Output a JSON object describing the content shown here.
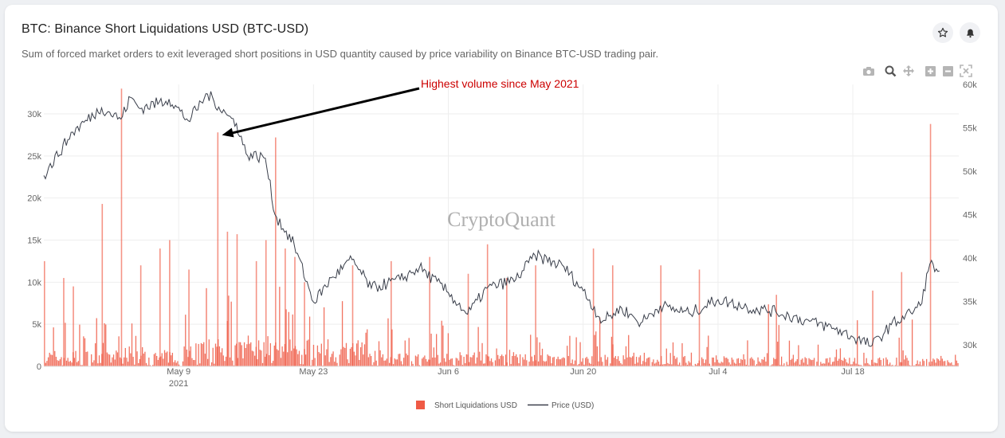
{
  "header": {
    "title": "BTC: Binance Short Liquidations USD (BTC-USD)",
    "subtitle": "Sum of forced market orders to exit leveraged short positions in USD quantity caused by price variability on Binance BTC-USD trading pair."
  },
  "actions": {
    "star_icon": "star-icon",
    "bell_icon": "bell-icon"
  },
  "modebar": [
    "camera-icon",
    "zoom-icon",
    "pan-icon",
    "zoom-in-icon",
    "zoom-out-icon",
    "autoscale-icon"
  ],
  "watermark": "CryptoQuant",
  "chart_data": {
    "type": "bar",
    "x_range": [
      "2021-04-25",
      "2021-07-29"
    ],
    "x_ticks": [
      {
        "date": "2021-05-09",
        "label": "May 9",
        "sublabel": "2021"
      },
      {
        "date": "2021-05-23",
        "label": "May 23"
      },
      {
        "date": "2021-06-06",
        "label": "Jun 6"
      },
      {
        "date": "2021-06-20",
        "label": "Jun 20"
      },
      {
        "date": "2021-07-04",
        "label": "Jul 4"
      },
      {
        "date": "2021-07-18",
        "label": "Jul 18"
      }
    ],
    "y_left": {
      "range": [
        0,
        33500
      ],
      "ticks": [
        0,
        5000,
        10000,
        15000,
        20000,
        25000,
        30000
      ],
      "tick_labels": [
        "0",
        "5k",
        "10k",
        "15k",
        "20k",
        "25k",
        "30k"
      ]
    },
    "y_right": {
      "range": [
        27500,
        60000
      ],
      "ticks": [
        30000,
        35000,
        40000,
        45000,
        50000,
        55000,
        60000
      ],
      "tick_labels": [
        "30k",
        "35k",
        "40k",
        "45k",
        "50k",
        "55k",
        "60k"
      ]
    },
    "grid": true,
    "legend_position": "bottom-center",
    "series": [
      {
        "name": "Short Liquidations USD",
        "kind": "bar",
        "axis": "left",
        "color": "#ef5a45",
        "spikes": [
          {
            "date": "2021-04-25",
            "value": 12500
          },
          {
            "date": "2021-04-27",
            "value": 10500
          },
          {
            "date": "2021-04-28",
            "value": 9500
          },
          {
            "date": "2021-05-01",
            "value": 19300
          },
          {
            "date": "2021-05-03",
            "value": 33000
          },
          {
            "date": "2021-05-05",
            "value": 12000
          },
          {
            "date": "2021-05-07",
            "value": 14000
          },
          {
            "date": "2021-05-08",
            "value": 15000
          },
          {
            "date": "2021-05-10",
            "value": 11500
          },
          {
            "date": "2021-05-13",
            "value": 27800
          },
          {
            "date": "2021-05-14",
            "value": 16000
          },
          {
            "date": "2021-05-15",
            "value": 15700
          },
          {
            "date": "2021-05-17",
            "value": 12500
          },
          {
            "date": "2021-05-18",
            "value": 15000
          },
          {
            "date": "2021-05-19",
            "value": 27200
          },
          {
            "date": "2021-05-20",
            "value": 14000
          },
          {
            "date": "2021-05-21",
            "value": 13000
          },
          {
            "date": "2021-05-22",
            "value": 10000
          },
          {
            "date": "2021-05-27",
            "value": 12000
          },
          {
            "date": "2021-05-31",
            "value": 12500
          },
          {
            "date": "2021-06-04",
            "value": 13000
          },
          {
            "date": "2021-06-08",
            "value": 11000
          },
          {
            "date": "2021-06-10",
            "value": 14500
          },
          {
            "date": "2021-06-12",
            "value": 10500
          },
          {
            "date": "2021-06-15",
            "value": 12000
          },
          {
            "date": "2021-06-21",
            "value": 14000
          },
          {
            "date": "2021-06-23",
            "value": 12000
          },
          {
            "date": "2021-06-28",
            "value": 12000
          },
          {
            "date": "2021-07-02",
            "value": 11500
          },
          {
            "date": "2021-07-10",
            "value": 8500
          },
          {
            "date": "2021-07-20",
            "value": 9000
          },
          {
            "date": "2021-07-23",
            "value": 11200
          },
          {
            "date": "2021-07-26",
            "value": 28800
          }
        ]
      },
      {
        "name": "Price (USD)",
        "kind": "line",
        "axis": "right",
        "color": "#3a3f4b",
        "points": [
          {
            "date": "2021-04-25",
            "value": 49500
          },
          {
            "date": "2021-04-28",
            "value": 54500
          },
          {
            "date": "2021-05-01",
            "value": 57300
          },
          {
            "date": "2021-05-03",
            "value": 56000
          },
          {
            "date": "2021-05-04",
            "value": 58500
          },
          {
            "date": "2021-05-05",
            "value": 57200
          },
          {
            "date": "2021-05-08",
            "value": 58300
          },
          {
            "date": "2021-05-10",
            "value": 55800
          },
          {
            "date": "2021-05-12",
            "value": 58900
          },
          {
            "date": "2021-05-14",
            "value": 56500
          },
          {
            "date": "2021-05-15",
            "value": 55500
          },
          {
            "date": "2021-05-16",
            "value": 52000
          },
          {
            "date": "2021-05-18",
            "value": 51500
          },
          {
            "date": "2021-05-19",
            "value": 45000
          },
          {
            "date": "2021-05-21",
            "value": 41500
          },
          {
            "date": "2021-05-23",
            "value": 34900
          },
          {
            "date": "2021-05-25",
            "value": 37800
          },
          {
            "date": "2021-05-27",
            "value": 39800
          },
          {
            "date": "2021-05-29",
            "value": 36500
          },
          {
            "date": "2021-06-01",
            "value": 37500
          },
          {
            "date": "2021-06-03",
            "value": 38900
          },
          {
            "date": "2021-06-06",
            "value": 36000
          },
          {
            "date": "2021-06-08",
            "value": 33500
          },
          {
            "date": "2021-06-10",
            "value": 36500
          },
          {
            "date": "2021-06-13",
            "value": 37500
          },
          {
            "date": "2021-06-15",
            "value": 40300
          },
          {
            "date": "2021-06-18",
            "value": 39000
          },
          {
            "date": "2021-06-20",
            "value": 36200
          },
          {
            "date": "2021-06-22",
            "value": 32700
          },
          {
            "date": "2021-06-24",
            "value": 34200
          },
          {
            "date": "2021-06-26",
            "value": 32500
          },
          {
            "date": "2021-06-28",
            "value": 34500
          },
          {
            "date": "2021-07-01",
            "value": 33600
          },
          {
            "date": "2021-07-04",
            "value": 35200
          },
          {
            "date": "2021-07-07",
            "value": 34300
          },
          {
            "date": "2021-07-10",
            "value": 33800
          },
          {
            "date": "2021-07-13",
            "value": 32800
          },
          {
            "date": "2021-07-16",
            "value": 31900
          },
          {
            "date": "2021-07-20",
            "value": 29900
          },
          {
            "date": "2021-07-22",
            "value": 32300
          },
          {
            "date": "2021-07-24",
            "value": 33700
          },
          {
            "date": "2021-07-25",
            "value": 34500
          },
          {
            "date": "2021-07-26",
            "value": 39300
          },
          {
            "date": "2021-07-27",
            "value": 38500
          }
        ]
      }
    ],
    "annotations": [
      {
        "text": "Highest volume since May 2021",
        "color": "#cc0000",
        "arrow_to": {
          "date": "2021-05-13",
          "value": 27000,
          "axis": "left"
        }
      }
    ]
  }
}
